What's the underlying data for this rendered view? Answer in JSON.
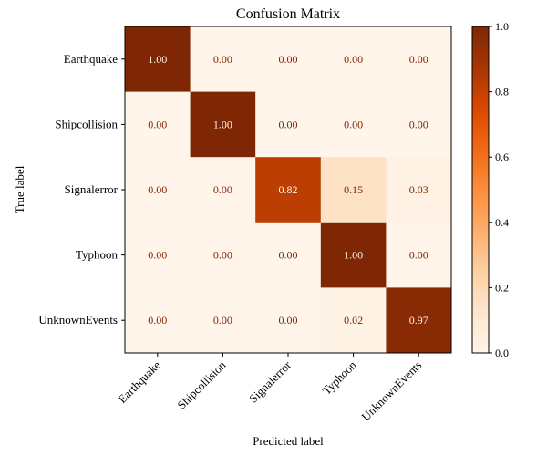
{
  "chart_data": {
    "type": "heatmap",
    "title": "Confusion Matrix",
    "xlabel": "Predicted label",
    "ylabel": "True label",
    "row_labels": [
      "Earthquake",
      "Shipcollision",
      "Signalerror",
      "Typhoon",
      "UnknownEvents"
    ],
    "col_labels": [
      "Earthquake",
      "Shipcollision",
      "Signalerror",
      "Typhoon",
      "UnknownEvents"
    ],
    "values": [
      [
        1.0,
        0.0,
        0.0,
        0.0,
        0.0
      ],
      [
        0.0,
        1.0,
        0.0,
        0.0,
        0.0
      ],
      [
        0.0,
        0.0,
        0.82,
        0.15,
        0.03
      ],
      [
        0.0,
        0.0,
        0.0,
        1.0,
        0.0
      ],
      [
        0.0,
        0.0,
        0.0,
        0.02,
        0.97
      ]
    ],
    "value_format": "0.00",
    "colormap": "Oranges",
    "colormap_stops": [
      "#fff5eb",
      "#fee6ce",
      "#fdd0a2",
      "#fdae6b",
      "#fd8d3c",
      "#f16913",
      "#d94801",
      "#a63603",
      "#7f2704"
    ],
    "annotation_colors": {
      "on_light": "#7f2704",
      "on_dark": "#fff5eb"
    },
    "vmin": 0.0,
    "vmax": 1.0,
    "colorbar_ticks": [
      0.0,
      0.2,
      0.4,
      0.6,
      0.8,
      1.0
    ],
    "colorbar_tick_labels": [
      "0.0",
      "0.2",
      "0.4",
      "0.6",
      "0.8",
      "1.0"
    ]
  }
}
